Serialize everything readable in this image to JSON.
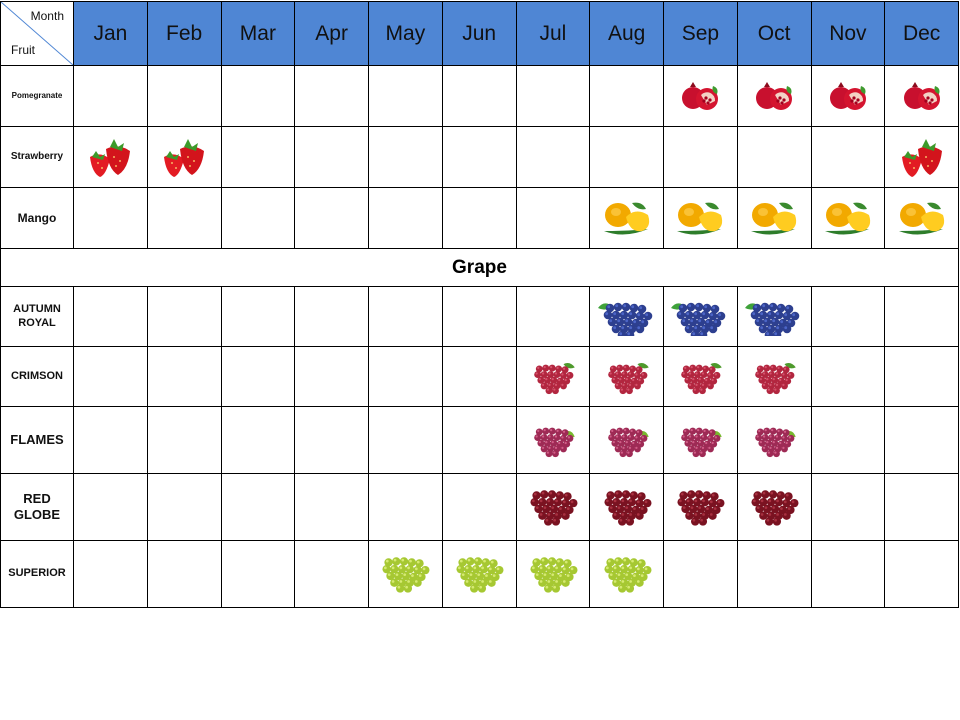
{
  "header": {
    "corner_month": "Month",
    "corner_fruit": "Fruit"
  },
  "months": [
    "Jan",
    "Feb",
    "Mar",
    "Apr",
    "May",
    "Jun",
    "Jul",
    "Aug",
    "Sep",
    "Oct",
    "Nov",
    "Dec"
  ],
  "colors": {
    "header_bg": "#4f86d4",
    "border": "#000000"
  },
  "fruits": [
    {
      "label": "Pomegranate",
      "icon": "pomegranate-icon",
      "months": [
        "Sep",
        "Oct",
        "Nov",
        "Dec"
      ]
    },
    {
      "label": "Strawberry",
      "icon": "strawberry-icon",
      "months": [
        "Jan",
        "Feb",
        "Dec"
      ]
    },
    {
      "label": "Mango",
      "icon": "mango-icon",
      "months": [
        "Aug",
        "Sep",
        "Oct",
        "Nov",
        "Dec"
      ]
    }
  ],
  "section": {
    "title": "Grape"
  },
  "grapes": [
    {
      "label": "AUTUMN ROYAL",
      "icon": "blue-grape-icon",
      "months": [
        "Aug",
        "Sep",
        "Oct"
      ]
    },
    {
      "label": "CRIMSON",
      "icon": "red-grape-icon",
      "months": [
        "Jul",
        "Aug",
        "Sep",
        "Oct"
      ]
    },
    {
      "label": "FLAMES",
      "icon": "pink-grape-icon",
      "months": [
        "Jul",
        "Aug",
        "Sep",
        "Oct"
      ]
    },
    {
      "label": "RED GLOBE",
      "icon": "dark-red-grape-icon",
      "months": [
        "Jul",
        "Aug",
        "Sep",
        "Oct"
      ]
    },
    {
      "label": "SUPERIOR",
      "icon": "green-grape-icon",
      "months": [
        "May",
        "Jun",
        "Jul",
        "Aug"
      ]
    }
  ]
}
